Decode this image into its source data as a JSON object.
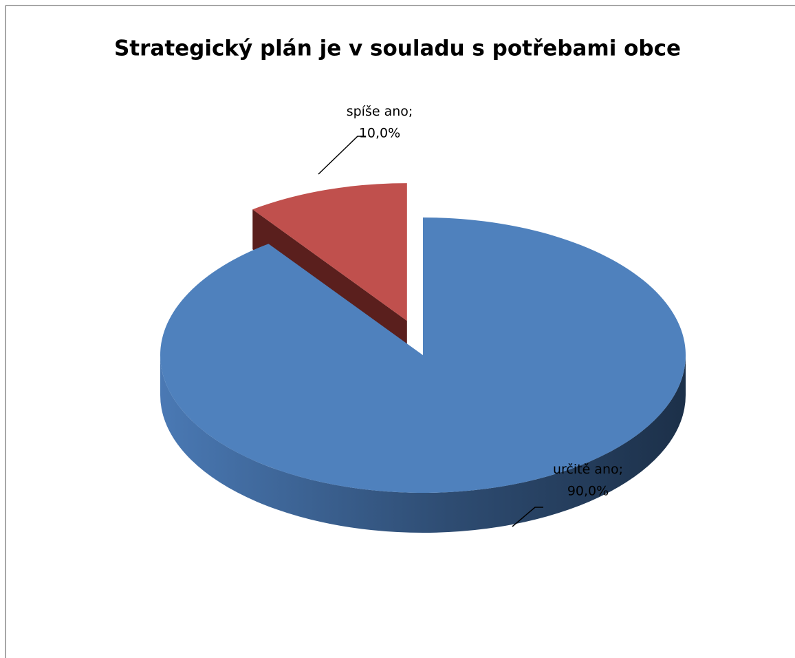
{
  "chart_data": {
    "type": "pie",
    "title": "Strategický plán je v souladu s potřebami obce",
    "categories": [
      "určitě ano",
      "spíše ano"
    ],
    "values": [
      90,
      10
    ],
    "value_labels": [
      "90,0%",
      "10,0%"
    ],
    "label_separator": ";",
    "colors": [
      "#4f81bd",
      "#c0504d"
    ],
    "exploded": [
      false,
      true
    ]
  }
}
